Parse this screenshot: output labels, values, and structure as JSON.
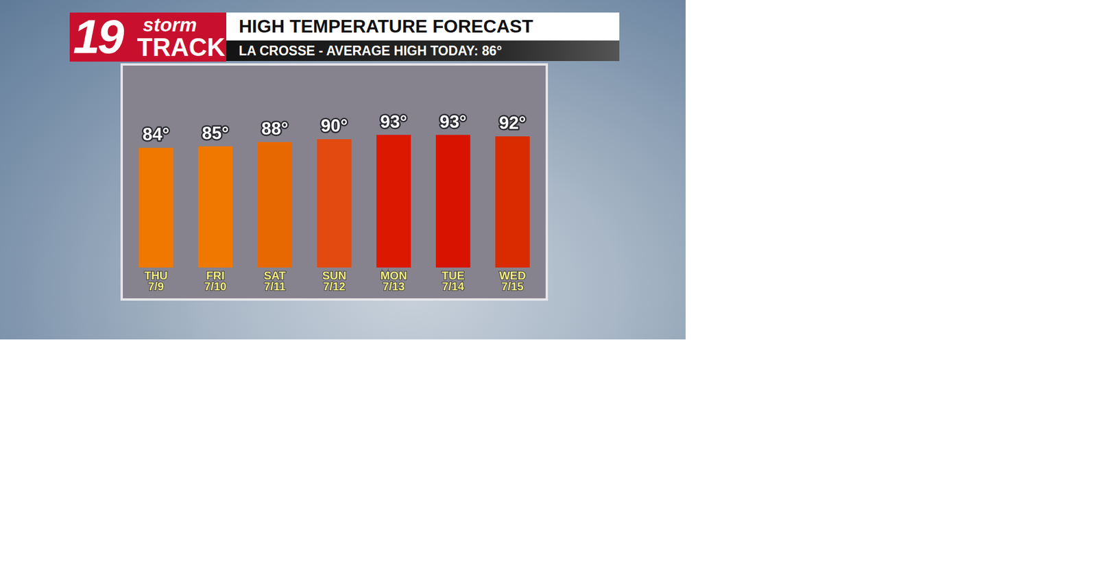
{
  "logo": {
    "number": "19",
    "line1": "storm",
    "line2": "TRACK"
  },
  "chart_data": {
    "type": "bar",
    "title": "HIGH TEMPERATURE FORECAST",
    "subtitle": "LA CROSSE - AVERAGE HIGH TODAY: 86°",
    "categories": [
      "THU 7/9",
      "FRI 7/10",
      "SAT 7/11",
      "SUN 7/12",
      "MON 7/13",
      "TUE 7/14",
      "WED 7/15"
    ],
    "values": [
      84,
      85,
      88,
      90,
      93,
      93,
      92
    ],
    "value_labels": [
      "84°",
      "85°",
      "88°",
      "90°",
      "93°",
      "93°",
      "92°"
    ],
    "colors": [
      "#f07800",
      "#f07800",
      "#e86800",
      "#e34a10",
      "#dc1800",
      "#d81400",
      "#da2a00"
    ],
    "ylim": [
      0,
      140
    ],
    "grid": false,
    "data_labels": true,
    "tick_labels": "x"
  }
}
